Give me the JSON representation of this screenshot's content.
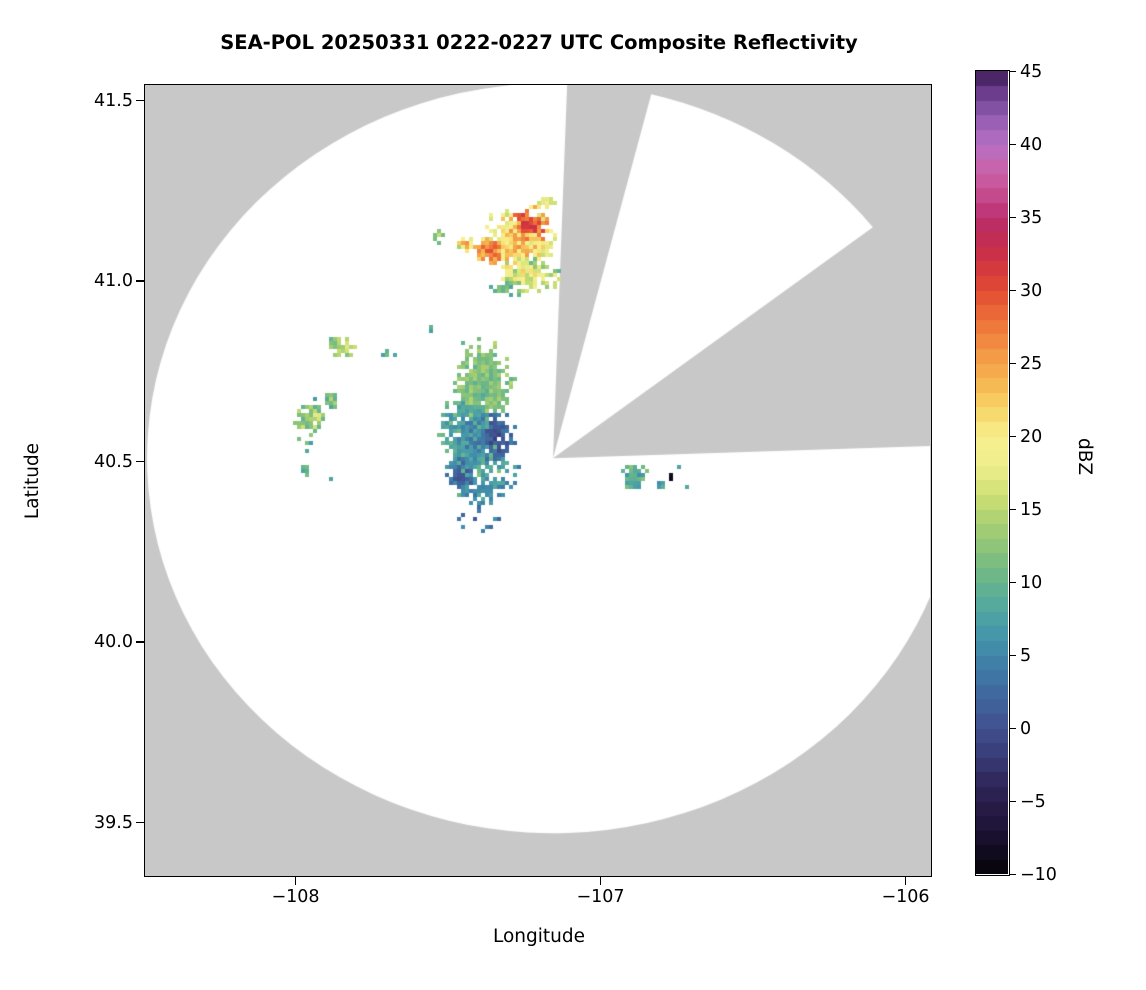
{
  "chart_data": {
    "type": "heatmap",
    "title": "SEA-POL 20250331 0222-0227 UTC Composite Reflectivity",
    "xlabel": "Longitude",
    "ylabel": "Latitude",
    "colorbar_label": "dBZ",
    "units": "dBZ",
    "xlim": [
      -108.4918,
      -105.918
    ],
    "ylim": [
      39.3533,
      41.5417
    ],
    "grid": false,
    "nodata_color": "#c8c8c8",
    "coverage_color": "#ffffff",
    "xticks": [
      {
        "value": -108,
        "label": "−108"
      },
      {
        "value": -107,
        "label": "−107"
      },
      {
        "value": -106,
        "label": "−106"
      }
    ],
    "yticks": [
      {
        "value": 41.5,
        "label": "41.5"
      },
      {
        "value": 41.0,
        "label": "41.0"
      },
      {
        "value": 40.5,
        "label": "40.5"
      },
      {
        "value": 40.0,
        "label": "40.0"
      },
      {
        "value": 39.5,
        "label": "39.5"
      }
    ],
    "colorbar": {
      "min": -10,
      "max": 45,
      "ticks": [
        {
          "value": 45,
          "label": "45"
        },
        {
          "value": 40,
          "label": "40"
        },
        {
          "value": 35,
          "label": "35"
        },
        {
          "value": 30,
          "label": "30"
        },
        {
          "value": 25,
          "label": "25"
        },
        {
          "value": 20,
          "label": "20"
        },
        {
          "value": 15,
          "label": "15"
        },
        {
          "value": 10,
          "label": "10"
        },
        {
          "value": 5,
          "label": "5"
        },
        {
          "value": 0,
          "label": "0"
        },
        {
          "value": -5,
          "label": "−5"
        },
        {
          "value": -10,
          "label": "−10"
        }
      ],
      "stops": [
        [
          -10,
          "#050308"
        ],
        [
          -8,
          "#150d26"
        ],
        [
          -6,
          "#241740"
        ],
        [
          -4,
          "#2f2558"
        ],
        [
          -2,
          "#383a74"
        ],
        [
          0,
          "#40508f"
        ],
        [
          2,
          "#40659c"
        ],
        [
          4,
          "#3f7aa6"
        ],
        [
          6,
          "#4392ab"
        ],
        [
          8,
          "#50a6a2"
        ],
        [
          10,
          "#65b48e"
        ],
        [
          12,
          "#85c17b"
        ],
        [
          14,
          "#a8cf72"
        ],
        [
          16,
          "#cfe075"
        ],
        [
          18,
          "#eeee8d"
        ],
        [
          20,
          "#f8ef8e"
        ],
        [
          22,
          "#f7d365"
        ],
        [
          24,
          "#f5b250"
        ],
        [
          26,
          "#f29343"
        ],
        [
          28,
          "#ed7038"
        ],
        [
          30,
          "#e24c33"
        ],
        [
          32,
          "#cf3342"
        ],
        [
          34,
          "#bc2b59"
        ],
        [
          35,
          "#bb2f6d"
        ],
        [
          36,
          "#c24386"
        ],
        [
          38,
          "#cb60a6"
        ],
        [
          40,
          "#b570c3"
        ],
        [
          42,
          "#8f5bb0"
        ],
        [
          44,
          "#5f3380"
        ],
        [
          45,
          "#371b4f"
        ]
      ]
    },
    "radar": {
      "center_lon": -107.154,
      "center_lat": 40.508,
      "range_deg_lon": 1.331,
      "range_deg_lat": 1.039,
      "missing_sectors_deg": [
        [
          2,
          14
        ],
        [
          52,
          88
        ]
      ]
    },
    "echoes": [
      {
        "lon": -107.385,
        "lat": 40.71,
        "rx": 0.105,
        "ry": 0.125,
        "core": 11.5,
        "edge": 12.5,
        "noise": 2.5,
        "density": 0.97,
        "seed": 1
      },
      {
        "lon": -107.42,
        "lat": 40.55,
        "rx": 0.115,
        "ry": 0.135,
        "core": 5,
        "edge": 11,
        "noise": 2.5,
        "density": 0.96,
        "seed": 2
      },
      {
        "lon": -107.335,
        "lat": 40.565,
        "rx": 0.055,
        "ry": 0.075,
        "core": 0,
        "edge": 4,
        "noise": 2,
        "density": 0.95,
        "seed": 3
      },
      {
        "lon": -107.455,
        "lat": 40.46,
        "rx": 0.055,
        "ry": 0.055,
        "core": 2,
        "edge": 5,
        "noise": 2.5,
        "density": 0.9,
        "seed": 4
      },
      {
        "lon": -107.38,
        "lat": 40.425,
        "rx": 0.075,
        "ry": 0.05,
        "core": 4.5,
        "edge": 8,
        "noise": 2.5,
        "density": 0.85,
        "seed": 5
      },
      {
        "lon": -107.41,
        "lat": 40.34,
        "rx": 0.09,
        "ry": 0.055,
        "core": 3,
        "edge": 4,
        "noise": 3,
        "density": 0.22,
        "seed": 6
      },
      {
        "lon": -107.3,
        "lat": 40.47,
        "rx": 0.04,
        "ry": 0.05,
        "core": 5,
        "edge": 8,
        "noise": 3,
        "density": 0.5,
        "seed": 7
      },
      {
        "lon": -107.26,
        "lat": 41.11,
        "rx": 0.12,
        "ry": 0.1,
        "core": 24,
        "edge": 16,
        "noise": 4,
        "density": 0.95,
        "seed": 8
      },
      {
        "lon": -107.225,
        "lat": 41.155,
        "rx": 0.055,
        "ry": 0.045,
        "core": 31,
        "edge": 26,
        "noise": 3,
        "density": 1,
        "seed": 9
      },
      {
        "lon": -107.36,
        "lat": 41.085,
        "rx": 0.05,
        "ry": 0.042,
        "core": 29,
        "edge": 23,
        "noise": 3,
        "density": 1,
        "seed": 10
      },
      {
        "lon": -107.24,
        "lat": 41.015,
        "rx": 0.105,
        "ry": 0.05,
        "core": 20,
        "edge": 12,
        "noise": 4,
        "density": 0.9,
        "seed": 11
      },
      {
        "lon": -107.445,
        "lat": 41.105,
        "rx": 0.032,
        "ry": 0.027,
        "core": 25,
        "edge": 16,
        "noise": 4,
        "density": 0.9,
        "seed": 12
      },
      {
        "lon": -107.53,
        "lat": 41.125,
        "rx": 0.025,
        "ry": 0.02,
        "core": 14,
        "edge": 10,
        "noise": 3,
        "density": 0.7,
        "seed": 13
      },
      {
        "lon": -107.315,
        "lat": 40.975,
        "rx": 0.05,
        "ry": 0.022,
        "core": 11,
        "edge": 9,
        "noise": 2.5,
        "density": 0.45,
        "seed": 14
      },
      {
        "lon": -107.17,
        "lat": 41.22,
        "rx": 0.04,
        "ry": 0.02,
        "core": 20,
        "edge": 14,
        "noise": 4,
        "density": 0.6,
        "seed": 15
      },
      {
        "lon": -107.84,
        "lat": 40.82,
        "rx": 0.05,
        "ry": 0.035,
        "core": 16,
        "edge": 10,
        "noise": 3,
        "density": 0.85,
        "seed": 16
      },
      {
        "lon": -107.7,
        "lat": 40.795,
        "rx": 0.028,
        "ry": 0.018,
        "core": 10,
        "edge": 8,
        "noise": 2,
        "density": 0.5,
        "seed": 17
      },
      {
        "lon": -107.95,
        "lat": 40.62,
        "rx": 0.055,
        "ry": 0.05,
        "core": 16,
        "edge": 9,
        "noise": 3.5,
        "density": 0.85,
        "seed": 18
      },
      {
        "lon": -107.88,
        "lat": 40.665,
        "rx": 0.03,
        "ry": 0.025,
        "core": 13,
        "edge": 9,
        "noise": 3,
        "density": 0.7,
        "seed": 19
      },
      {
        "lon": -107.965,
        "lat": 40.545,
        "rx": 0.03,
        "ry": 0.025,
        "core": 12,
        "edge": 8,
        "noise": 3,
        "density": 0.6,
        "seed": 20
      },
      {
        "lon": -107.96,
        "lat": 40.475,
        "rx": 0.025,
        "ry": 0.018,
        "core": 10,
        "edge": 7,
        "noise": 3,
        "density": 0.5,
        "seed": 21
      },
      {
        "lon": -107.87,
        "lat": 40.44,
        "rx": 0.018,
        "ry": 0.013,
        "core": 9,
        "edge": 7,
        "noise": 2,
        "density": 0.4,
        "seed": 22
      },
      {
        "lon": -107.56,
        "lat": 40.865,
        "rx": 0.02,
        "ry": 0.014,
        "core": 10,
        "edge": 8,
        "noise": 2,
        "density": 0.4,
        "seed": 23
      },
      {
        "lon": -106.89,
        "lat": 40.455,
        "rx": 0.048,
        "ry": 0.042,
        "core": 7,
        "edge": 11,
        "noise": 3,
        "density": 0.92,
        "seed": 24
      },
      {
        "lon": -106.805,
        "lat": 40.44,
        "rx": 0.04,
        "ry": 0.022,
        "core": 8,
        "edge": 10,
        "noise": 3,
        "density": 0.3,
        "seed": 25
      },
      {
        "lon": -106.765,
        "lat": 40.455,
        "rx": 0.013,
        "ry": 0.011,
        "core": -9,
        "edge": -8,
        "noise": 0.5,
        "density": 1,
        "seed": 26
      },
      {
        "lon": -106.7,
        "lat": 40.425,
        "rx": 0.022,
        "ry": 0.012,
        "core": 7,
        "edge": 7,
        "noise": 2,
        "density": 0.3,
        "seed": 27
      },
      {
        "lon": -106.72,
        "lat": 40.48,
        "rx": 0.02,
        "ry": 0.012,
        "core": 8,
        "edge": 8,
        "noise": 2,
        "density": 0.3,
        "seed": 28
      }
    ]
  }
}
